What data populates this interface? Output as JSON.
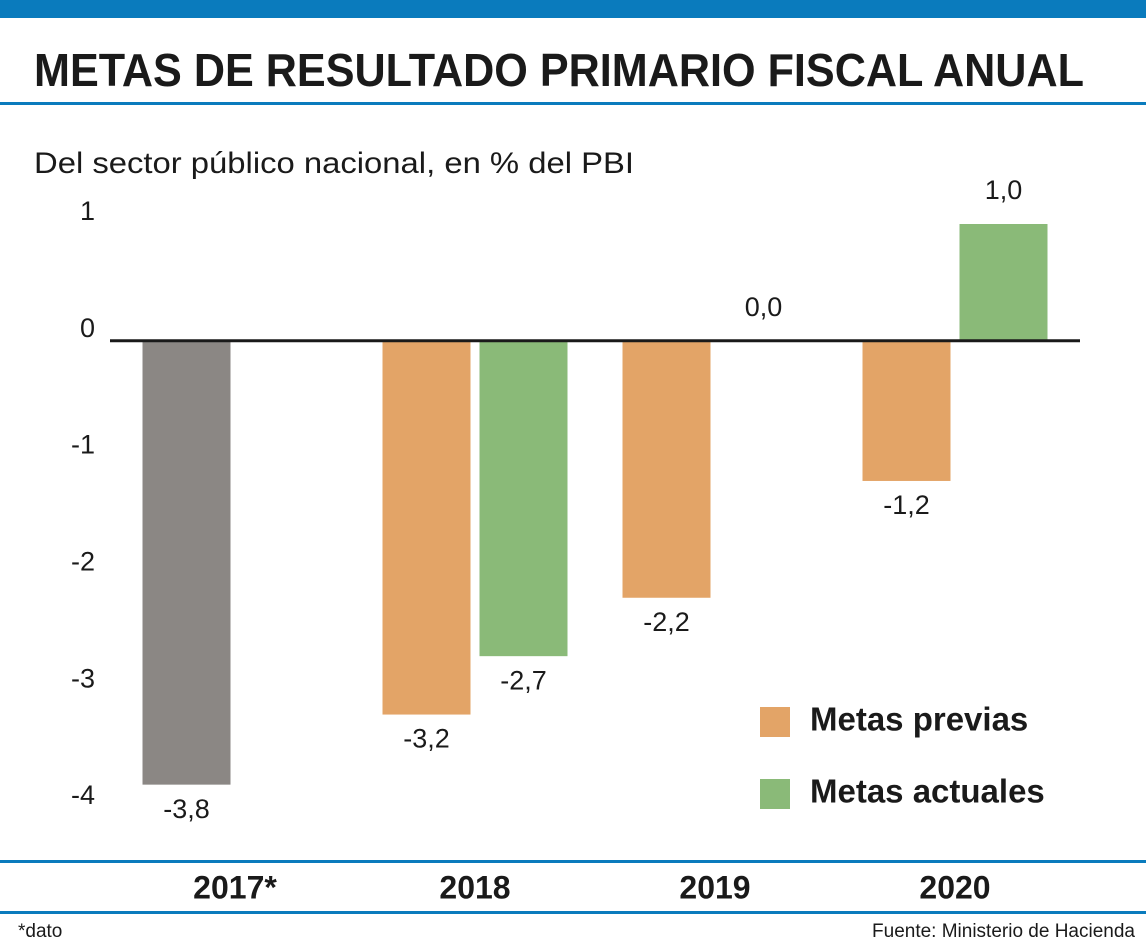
{
  "chart_data": {
    "type": "bar",
    "title": "METAS DE RESULTADO PRIMARIO FISCAL ANUAL",
    "subtitle": "Del sector público nacional, en % del PBI",
    "categories": [
      "2017*",
      "2018",
      "2019",
      "2020"
    ],
    "series": [
      {
        "name": "Metas previas",
        "color": "#e3a467",
        "point_colors": [
          "#8b8784",
          "#e3a467",
          "#e3a467",
          "#e3a467"
        ],
        "values": [
          -3.8,
          -3.2,
          -2.2,
          -1.2
        ],
        "value_labels": [
          "-3,8",
          "-3,2",
          "-2,2",
          "-1,2"
        ]
      },
      {
        "name": "Metas actuales",
        "color": "#8aba78",
        "values": [
          null,
          -2.7,
          0.0,
          1.0
        ],
        "value_labels": [
          null,
          "-2,7",
          "0,0",
          "1,0"
        ]
      }
    ],
    "ylim": [
      -4,
      1
    ],
    "yticks": [
      1,
      0,
      -1,
      -2,
      -3,
      -4
    ],
    "legend": "lower right",
    "footnote": "*dato",
    "source": "Fuente: Ministerio de Hacienda"
  }
}
